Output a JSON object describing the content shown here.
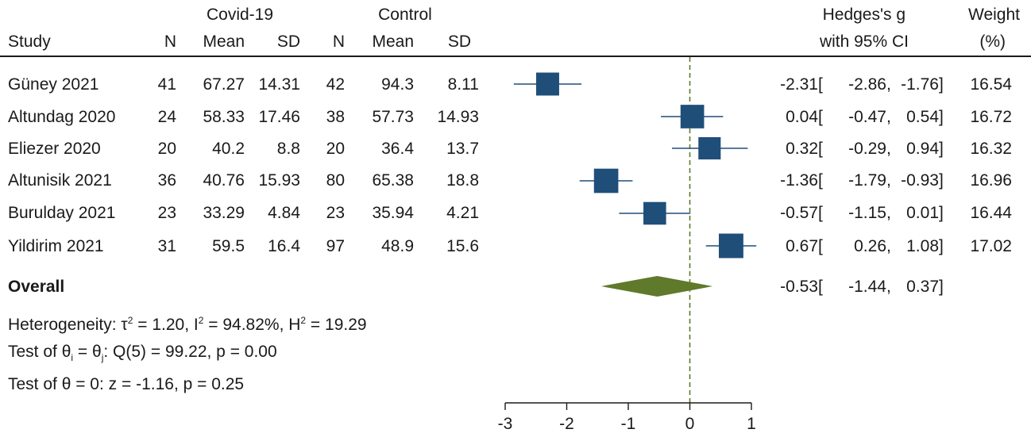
{
  "headers": {
    "group1": "Covid-19",
    "group2": "Control",
    "study": "Study",
    "n": "N",
    "mean": "Mean",
    "sd": "SD",
    "effect_line1": "Hedges's g",
    "effect_line2": "with 95% CI",
    "weight_line1": "Weight",
    "weight_line2": "(%)"
  },
  "studies": [
    {
      "name": "Güney 2021",
      "n1": "41",
      "mean1": "67.27",
      "sd1": "14.31",
      "n2": "42",
      "mean2": "94.3",
      "sd2": "8.11",
      "g": "-2.31",
      "lo": "-2.86",
      "hi": "-1.76",
      "weight": "16.54"
    },
    {
      "name": "Altundag 2020",
      "n1": "24",
      "mean1": "58.33",
      "sd1": "17.46",
      "n2": "38",
      "mean2": "57.73",
      "sd2": "14.93",
      "g": "0.04",
      "lo": "-0.47",
      "hi": "0.54",
      "weight": "16.72"
    },
    {
      "name": "Eliezer 2020",
      "n1": "20",
      "mean1": "40.2",
      "sd1": "8.8",
      "n2": "20",
      "mean2": "36.4",
      "sd2": "13.7",
      "g": "0.32",
      "lo": "-0.29",
      "hi": "0.94",
      "weight": "16.32"
    },
    {
      "name": "Altunisik 2021",
      "n1": "36",
      "mean1": "40.76",
      "sd1": "15.93",
      "n2": "80",
      "mean2": "65.38",
      "sd2": "18.8",
      "g": "-1.36",
      "lo": "-1.79",
      "hi": "-0.93",
      "weight": "16.96"
    },
    {
      "name": "Burulday 2021",
      "n1": "23",
      "mean1": "33.29",
      "sd1": "4.84",
      "n2": "23",
      "mean2": "35.94",
      "sd2": "4.21",
      "g": "-0.57",
      "lo": "-1.15",
      "hi": "0.01",
      "weight": "16.44"
    },
    {
      "name": "Yildirim 2021",
      "n1": "31",
      "mean1": "59.5",
      "sd1": "16.4",
      "n2": "97",
      "mean2": "48.9",
      "sd2": "15.6",
      "g": "0.67",
      "lo": "0.26",
      "hi": "1.08",
      "weight": "17.02"
    }
  ],
  "overall": {
    "label": "Overall",
    "g": "-0.53",
    "lo": "-1.44",
    "hi": "0.37"
  },
  "stats": {
    "het_prefix": "Heterogeneity: τ",
    "het_sup1": "2",
    "het_mid1": " = 1.20, I",
    "het_sup2": "2",
    "het_mid2": " = 94.82%, H",
    "het_sup3": "2",
    "het_end": " = 19.29",
    "test1_a": "Test of θ",
    "test1_sub1": "i",
    "test1_b": " = θ",
    "test1_sub2": "j",
    "test1_c": ": Q(5) = 99.22, p = 0.00",
    "test2": "Test of θ = 0: z = -1.16, p = 0.25"
  },
  "colors": {
    "marker": "#1f4e79",
    "diamond": "#5e7a2a",
    "refline": "#5e7a2a",
    "text": "#1a1a1a"
  },
  "chart_data": {
    "type": "forest",
    "xlim": [
      -3,
      1
    ],
    "xticks": [
      -3,
      -2,
      -1,
      0,
      1
    ],
    "reference_line": 0,
    "series": [
      {
        "study": "Güney 2021",
        "g": -2.31,
        "lo": -2.86,
        "hi": -1.76,
        "weight": 16.54
      },
      {
        "study": "Altundag 2020",
        "g": 0.04,
        "lo": -0.47,
        "hi": 0.54,
        "weight": 16.72
      },
      {
        "study": "Eliezer 2020",
        "g": 0.32,
        "lo": -0.29,
        "hi": 0.94,
        "weight": 16.32
      },
      {
        "study": "Altunisik 2021",
        "g": -1.36,
        "lo": -1.79,
        "hi": -0.93,
        "weight": 16.96
      },
      {
        "study": "Burulday 2021",
        "g": -0.57,
        "lo": -1.15,
        "hi": 0.01,
        "weight": 16.44
      },
      {
        "study": "Yildirim 2021",
        "g": 0.67,
        "lo": 0.26,
        "hi": 1.08,
        "weight": 17.02
      }
    ],
    "overall": {
      "g": -0.53,
      "lo": -1.44,
      "hi": 0.37
    }
  }
}
